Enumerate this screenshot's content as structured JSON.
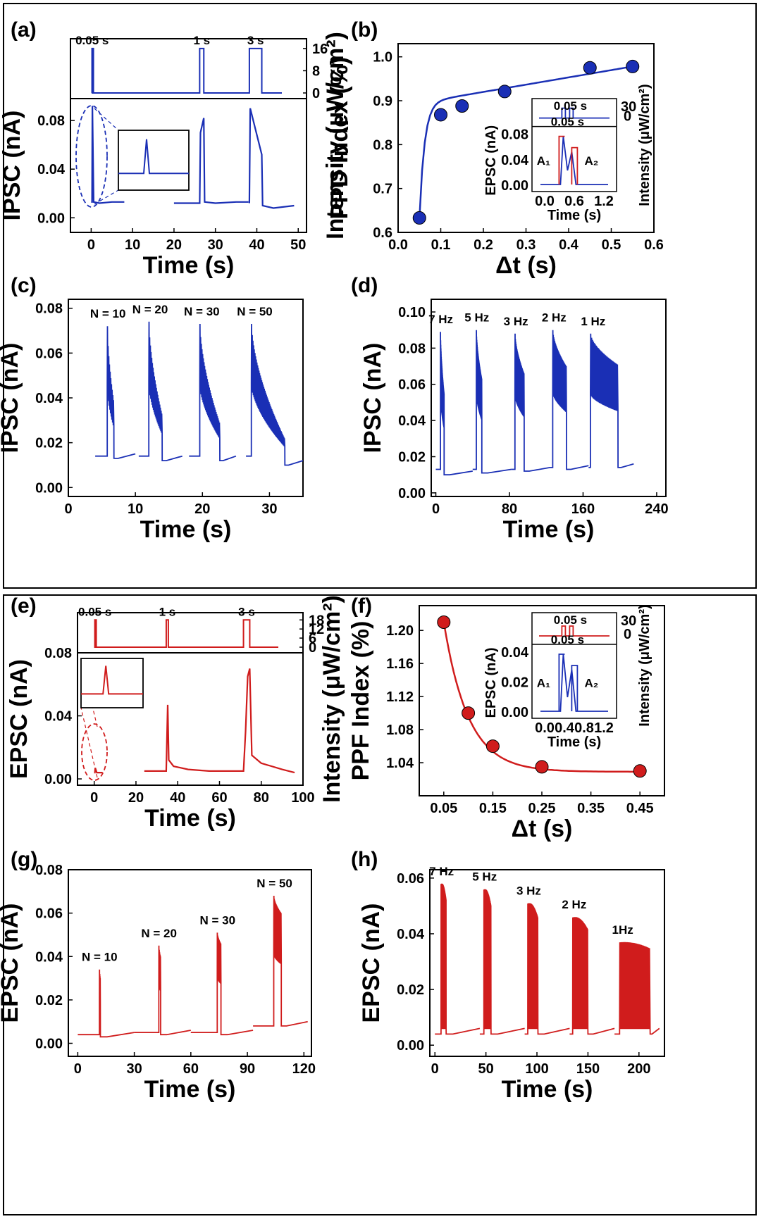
{
  "figure": {
    "blue": "#1a2fb5",
    "red": "#d01c1c"
  },
  "chart_data": [
    {
      "id": "a",
      "letter": "(a)",
      "type": "line",
      "color": "#1a2fb5",
      "xlabel": "Time (s)",
      "ylabel": "IPSC (nA)",
      "y2label": "Intensity (μW/cm²)",
      "xlim": [
        -5,
        52
      ],
      "ylim": [
        -0.012,
        0.098
      ],
      "xticks": [
        "0",
        "10",
        "20",
        "30",
        "40",
        "50"
      ],
      "yticks": [
        "0.00",
        "0.04",
        "0.08"
      ],
      "intensity_ticks": [
        "0",
        "8",
        "16"
      ],
      "intensity_max": 18,
      "pulses": [
        {
          "label": "0.05 s",
          "start": 0.2,
          "end": 0.25,
          "level": 16
        },
        {
          "label": "1 s",
          "start": 26.2,
          "end": 27.2,
          "level": 16
        },
        {
          "label": "3 s",
          "start": 38.2,
          "end": 41.2,
          "level": 16
        }
      ],
      "segments": [
        {
          "x": [
            0,
            0.2,
            0.3,
            0.6,
            2,
            5,
            8
          ],
          "y": [
            0.013,
            0.013,
            0.092,
            0.013,
            0.012,
            0.013,
            0.013
          ]
        },
        {
          "x": [
            20,
            24,
            26.2,
            26.4,
            27.2,
            27.4,
            30,
            35,
            38
          ],
          "y": [
            0.012,
            0.012,
            0.012,
            0.07,
            0.082,
            0.013,
            0.012,
            0.013,
            0.013
          ]
        },
        {
          "x": [
            38.2,
            38.4,
            41.2,
            41.4,
            44,
            49
          ],
          "y": [
            0.012,
            0.09,
            0.052,
            0.01,
            0.008,
            0.01
          ]
        }
      ]
    },
    {
      "id": "b",
      "letter": "(b)",
      "type": "scatter",
      "color": "#1a2fb5",
      "xlabel": "Δt (s)",
      "ylabel": "PPD Index (%)",
      "xlim": [
        0.0,
        0.6
      ],
      "ylim": [
        0.6,
        1.03
      ],
      "xticks": [
        "0.0",
        "0.1",
        "0.2",
        "0.3",
        "0.4",
        "0.5",
        "0.6"
      ],
      "yticks": [
        "0.6",
        "0.7",
        "0.8",
        "0.9",
        "1.0"
      ],
      "x": [
        0.05,
        0.1,
        0.15,
        0.25,
        0.45,
        0.55
      ],
      "y": [
        0.633,
        0.868,
        0.888,
        0.921,
        0.975,
        0.978
      ],
      "inset": {
        "xlabel": "Time (s)",
        "ylabel": "EPSC (nA)",
        "y2label": "Intensity (μW/cm²)",
        "xticks": [
          "0.0",
          "0.6",
          "1.2"
        ],
        "yticks": [
          "0.00",
          "0.04",
          "0.08"
        ],
        "intensity_ticks": [
          "0",
          "30"
        ],
        "pulse_label_top": "0.05 s",
        "pulse_label_bottom": "0.05 s",
        "A1": "A₁",
        "A2": "A₂"
      }
    },
    {
      "id": "c",
      "letter": "(c)",
      "type": "line",
      "color": "#1a2fb5",
      "xlabel": "Time (s)",
      "ylabel": "IPSC (nA)",
      "xlim": [
        0,
        35
      ],
      "ylim": [
        -0.004,
        0.084
      ],
      "xticks": [
        "0",
        "10",
        "20",
        "30"
      ],
      "yticks": [
        "0.00",
        "0.02",
        "0.04",
        "0.06",
        "0.08"
      ],
      "trains": [
        {
          "label": "N = 10",
          "seg_start": 4,
          "seg_end": 10,
          "t_start": 5.8,
          "t_end": 6.8,
          "base": 0.014,
          "peak": 0.072,
          "tail": 0.039,
          "floor": 0.013,
          "n": 10
        },
        {
          "label": "N = 20",
          "seg_start": 10.5,
          "seg_end": 17,
          "t_start": 12,
          "t_end": 14,
          "base": 0.014,
          "peak": 0.074,
          "tail": 0.033,
          "floor": 0.012,
          "n": 20
        },
        {
          "label": "N = 30",
          "seg_start": 18,
          "seg_end": 25,
          "t_start": 19.6,
          "t_end": 22.6,
          "base": 0.014,
          "peak": 0.073,
          "tail": 0.029,
          "floor": 0.012,
          "n": 30
        },
        {
          "label": "N = 50",
          "seg_start": 26.5,
          "seg_end": 35,
          "t_start": 27.3,
          "t_end": 32.3,
          "base": 0.014,
          "peak": 0.073,
          "tail": 0.022,
          "floor": 0.01,
          "n": 50
        }
      ]
    },
    {
      "id": "d",
      "letter": "(d)",
      "type": "line",
      "color": "#1a2fb5",
      "xlabel": "Time (s)",
      "ylabel": "IPSC (nA)",
      "xlim": [
        -5,
        250
      ],
      "ylim": [
        -0.002,
        0.107
      ],
      "xticks": [
        "0",
        "80",
        "160",
        "240"
      ],
      "yticks": [
        "0.00",
        "0.02",
        "0.04",
        "0.06",
        "0.08",
        "0.10"
      ],
      "trains": [
        {
          "label": "7 Hz",
          "seg_start": 0,
          "seg_end": 40,
          "t_start": 5,
          "t_end": 9,
          "base": 0.013,
          "peak": 0.089,
          "tail": 0.055,
          "floor": 0.01,
          "n": 28
        },
        {
          "label": "5 Hz",
          "seg_start": 40,
          "seg_end": 82,
          "t_start": 44,
          "t_end": 50,
          "base": 0.013,
          "peak": 0.09,
          "tail": 0.063,
          "floor": 0.011,
          "n": 30
        },
        {
          "label": "3 Hz",
          "seg_start": 82,
          "seg_end": 124,
          "t_start": 86,
          "t_end": 96,
          "base": 0.013,
          "peak": 0.088,
          "tail": 0.066,
          "floor": 0.012,
          "n": 30
        },
        {
          "label": "2 Hz",
          "seg_start": 124,
          "seg_end": 166,
          "t_start": 127,
          "t_end": 142,
          "base": 0.014,
          "peak": 0.09,
          "tail": 0.07,
          "floor": 0.013,
          "n": 30
        },
        {
          "label": "1 Hz",
          "seg_start": 166,
          "seg_end": 215,
          "t_start": 168,
          "t_end": 198,
          "base": 0.014,
          "peak": 0.088,
          "tail": 0.071,
          "floor": 0.014,
          "n": 30
        }
      ]
    },
    {
      "id": "e",
      "letter": "(e)",
      "type": "line",
      "color": "#d01c1c",
      "xlabel": "Time (s)",
      "ylabel": "EPSC (nA)",
      "y2label": "Intensity (μW/cm²)",
      "xlim": [
        -8,
        100
      ],
      "ylim": [
        -0.004,
        0.08
      ],
      "xticks": [
        "0",
        "20",
        "40",
        "60",
        "80",
        "100"
      ],
      "yticks": [
        "0.00",
        "0.04",
        "0.08"
      ],
      "intensity_ticks": [
        "0",
        "6",
        "12",
        "18"
      ],
      "intensity_max": 20,
      "pulses": [
        {
          "label": "0.05 s",
          "start": 0.3,
          "end": 0.35,
          "level": 18
        },
        {
          "label": "1 s",
          "start": 34.5,
          "end": 35.5,
          "level": 18
        },
        {
          "label": "3 s",
          "start": 71.5,
          "end": 74.5,
          "level": 18
        }
      ],
      "segments": [
        {
          "x": [
            0,
            0.3,
            0.5,
            1.2,
            4
          ],
          "y": [
            0.004,
            0.004,
            0.007,
            0.004,
            0.004
          ]
        },
        {
          "x": [
            24,
            30,
            34.5,
            35.2,
            35.7,
            38,
            45,
            55,
            60
          ],
          "y": [
            0.005,
            0.005,
            0.005,
            0.047,
            0.012,
            0.008,
            0.006,
            0.005,
            0.005
          ]
        },
        {
          "x": [
            60,
            66,
            71.5,
            72.5,
            73.5,
            74.5,
            75.5,
            80,
            90,
            96
          ],
          "y": [
            0.005,
            0.005,
            0.005,
            0.03,
            0.065,
            0.07,
            0.015,
            0.01,
            0.006,
            0.004
          ]
        }
      ]
    },
    {
      "id": "f",
      "letter": "(f)",
      "type": "scatter",
      "color": "#d01c1c",
      "xlabel": "Δt (s)",
      "ylabel": "PPF Index (%)",
      "xlim": [
        0.0,
        0.5
      ],
      "ylim": [
        1.0,
        1.23
      ],
      "xticks": [
        "0.05",
        "0.15",
        "0.25",
        "0.35",
        "0.45"
      ],
      "yticks": [
        "1.04",
        "1.08",
        "1.12",
        "1.16",
        "1.20"
      ],
      "x": [
        0.05,
        0.1,
        0.15,
        0.25,
        0.45
      ],
      "y": [
        1.21,
        1.1,
        1.06,
        1.035,
        1.03
      ],
      "inset": {
        "xlabel": "Time (s)",
        "ylabel": "EPSC (nA)",
        "y2label": "Intensity (μW/cm²)",
        "xticks": [
          "0.0",
          "0.4",
          "0.8",
          "1.2"
        ],
        "yticks": [
          "0.00",
          "0.02",
          "0.04"
        ],
        "intensity_ticks": [
          "0",
          "30"
        ],
        "pulse_label_top": "0.05 s",
        "pulse_label_bottom": "0.05 s",
        "A1": "A₁",
        "A2": "A₂"
      }
    },
    {
      "id": "g",
      "letter": "(g)",
      "type": "line",
      "color": "#d01c1c",
      "xlabel": "Time (s)",
      "ylabel": "EPSC (nA)",
      "xlim": [
        -5,
        124
      ],
      "ylim": [
        -0.006,
        0.08
      ],
      "xticks": [
        "0",
        "30",
        "60",
        "90",
        "120"
      ],
      "yticks": [
        "0.00",
        "0.02",
        "0.04",
        "0.06",
        "0.08"
      ],
      "trains": [
        {
          "label": "N = 10",
          "seg_start": 0,
          "seg_end": 30,
          "t_start": 11.5,
          "t_end": 12,
          "base": 0.004,
          "peak": 0.034,
          "tail": 0.03,
          "floor": 0.003,
          "n": 4
        },
        {
          "label": "N = 20",
          "seg_start": 30,
          "seg_end": 60,
          "t_start": 43,
          "t_end": 44,
          "base": 0.005,
          "peak": 0.045,
          "tail": 0.04,
          "floor": 0.004,
          "n": 6
        },
        {
          "label": "N = 30",
          "seg_start": 60,
          "seg_end": 93,
          "t_start": 74,
          "t_end": 76,
          "base": 0.005,
          "peak": 0.051,
          "tail": 0.046,
          "floor": 0.004,
          "n": 10
        },
        {
          "label": "N = 50",
          "seg_start": 93,
          "seg_end": 122,
          "t_start": 104,
          "t_end": 108,
          "base": 0.008,
          "peak": 0.068,
          "tail": 0.06,
          "floor": 0.008,
          "n": 20
        }
      ]
    },
    {
      "id": "h",
      "letter": "(h)",
      "type": "line",
      "color": "#d01c1c",
      "xlabel": "Time (s)",
      "ylabel": "EPSC (nA)",
      "xlim": [
        -5,
        225
      ],
      "ylim": [
        -0.004,
        0.063
      ],
      "xticks": [
        "0",
        "50",
        "100",
        "150",
        "200"
      ],
      "yticks": [
        "0.00",
        "0.02",
        "0.04",
        "0.06"
      ],
      "trains": [
        {
          "label": "7 Hz",
          "seg_start": 0,
          "seg_end": 44,
          "t_start": 6,
          "t_end": 11,
          "base": 0.004,
          "peak": 0.058,
          "tail": 0.05,
          "floor": 0.004,
          "n": 30,
          "rising": true
        },
        {
          "label": "5 Hz",
          "seg_start": 44,
          "seg_end": 88,
          "t_start": 48,
          "t_end": 55,
          "base": 0.004,
          "peak": 0.056,
          "tail": 0.048,
          "floor": 0.004,
          "n": 30,
          "rising": true
        },
        {
          "label": "3 Hz",
          "seg_start": 88,
          "seg_end": 132,
          "t_start": 91,
          "t_end": 101,
          "base": 0.004,
          "peak": 0.051,
          "tail": 0.044,
          "floor": 0.004,
          "n": 30,
          "rising": true
        },
        {
          "label": "2 Hz",
          "seg_start": 132,
          "seg_end": 176,
          "t_start": 135,
          "t_end": 150,
          "base": 0.004,
          "peak": 0.046,
          "tail": 0.04,
          "floor": 0.004,
          "n": 30,
          "rising": true
        },
        {
          "label": "1Hz",
          "seg_start": 176,
          "seg_end": 220,
          "t_start": 181,
          "t_end": 211,
          "base": 0.004,
          "peak": 0.037,
          "tail": 0.034,
          "floor": 0.004,
          "n": 30,
          "rising": true
        }
      ]
    }
  ]
}
